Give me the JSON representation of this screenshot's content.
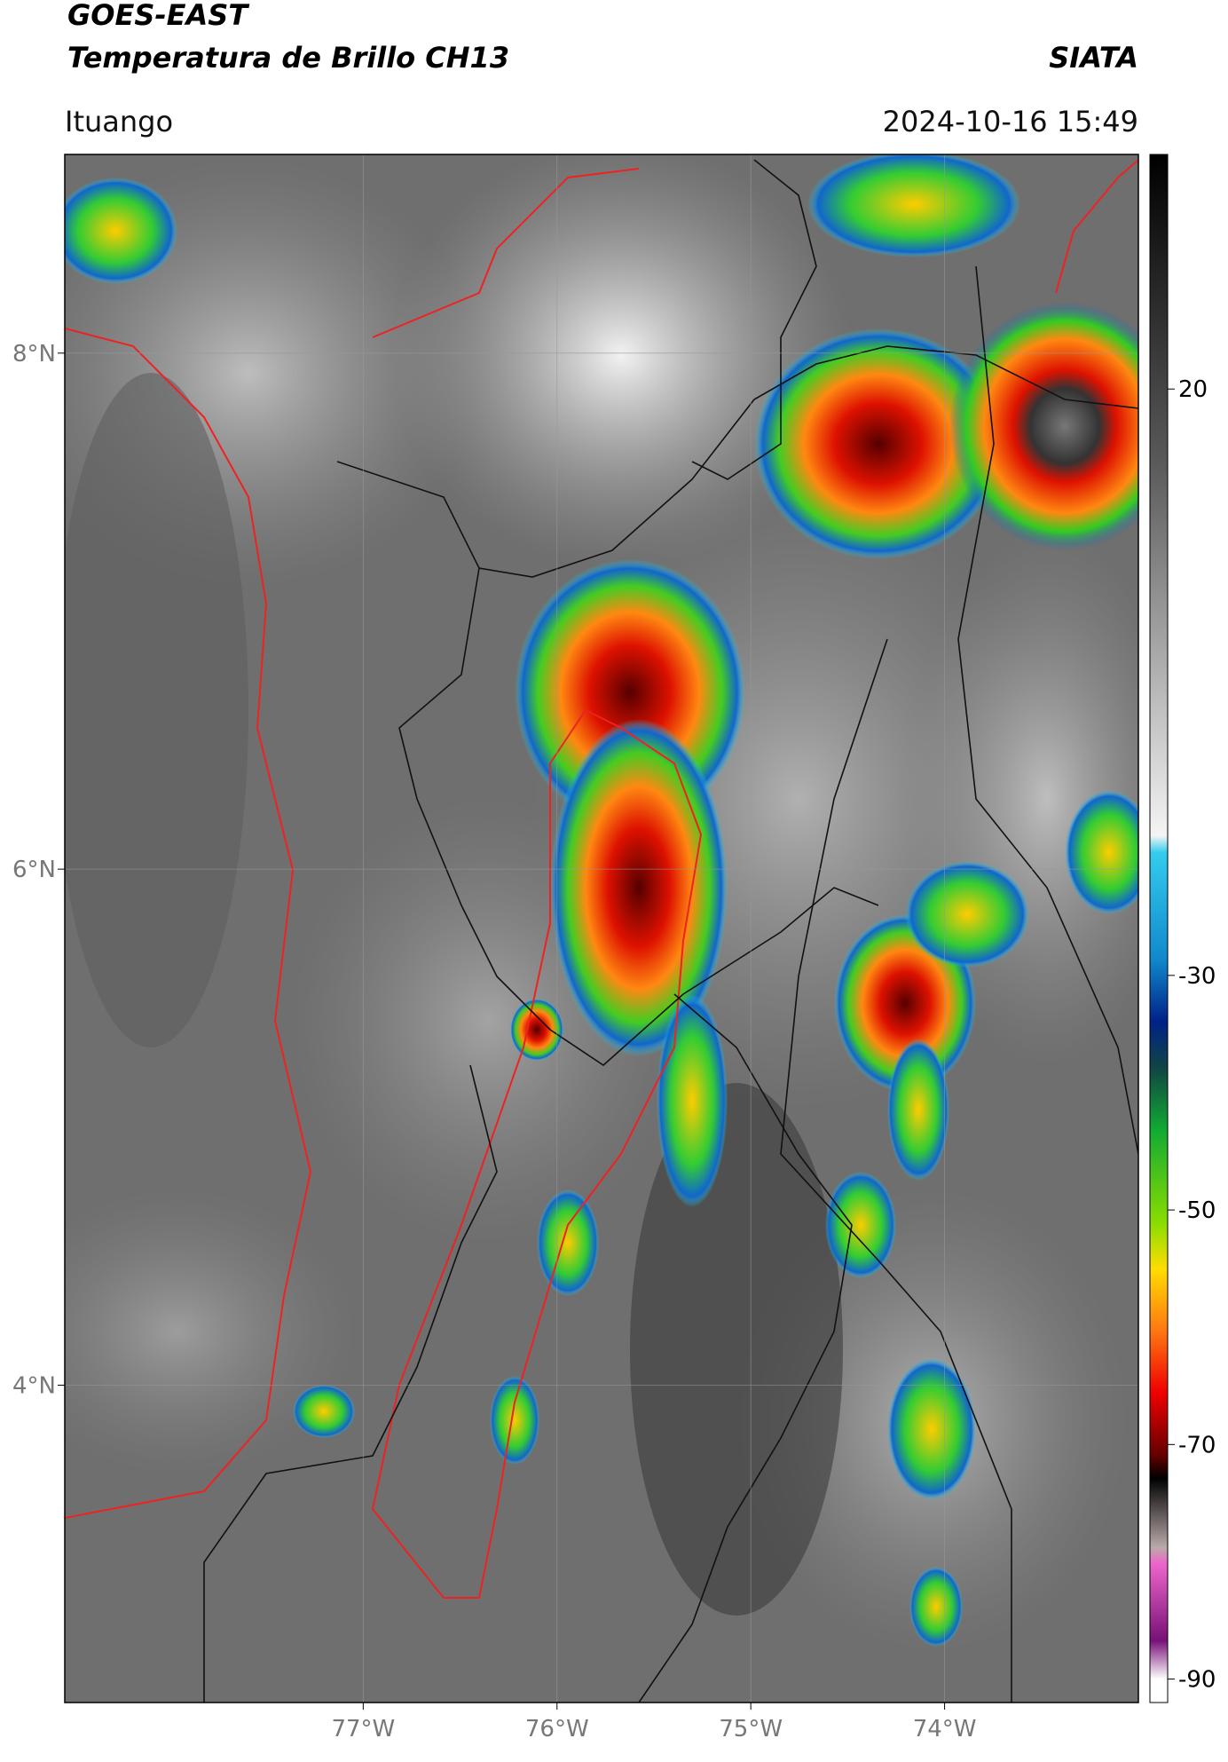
{
  "header": {
    "title": "GOES-EAST",
    "subtitle": "Temperatura de Brillo CH13",
    "agency": "SIATA",
    "location": "Ituango",
    "datetime": "2024-10-16 15:49"
  },
  "map": {
    "lonlim": [
      -78.54,
      -73.0
    ],
    "latlim": [
      2.77,
      8.77
    ],
    "lonticks": [
      {
        "value": -77,
        "label": "77°W"
      },
      {
        "value": -76,
        "label": "76°W"
      },
      {
        "value": -75,
        "label": "75°W"
      },
      {
        "value": -74,
        "label": "74°W"
      }
    ],
    "latticks": [
      {
        "value": 8,
        "label": "8°N"
      },
      {
        "value": 6,
        "label": "6°N"
      },
      {
        "value": 4,
        "label": "4°N"
      }
    ]
  },
  "colorbar": {
    "lim": [
      -92,
      40
    ],
    "ticks": [
      20,
      -30,
      -50,
      -70,
      -90
    ]
  }
}
